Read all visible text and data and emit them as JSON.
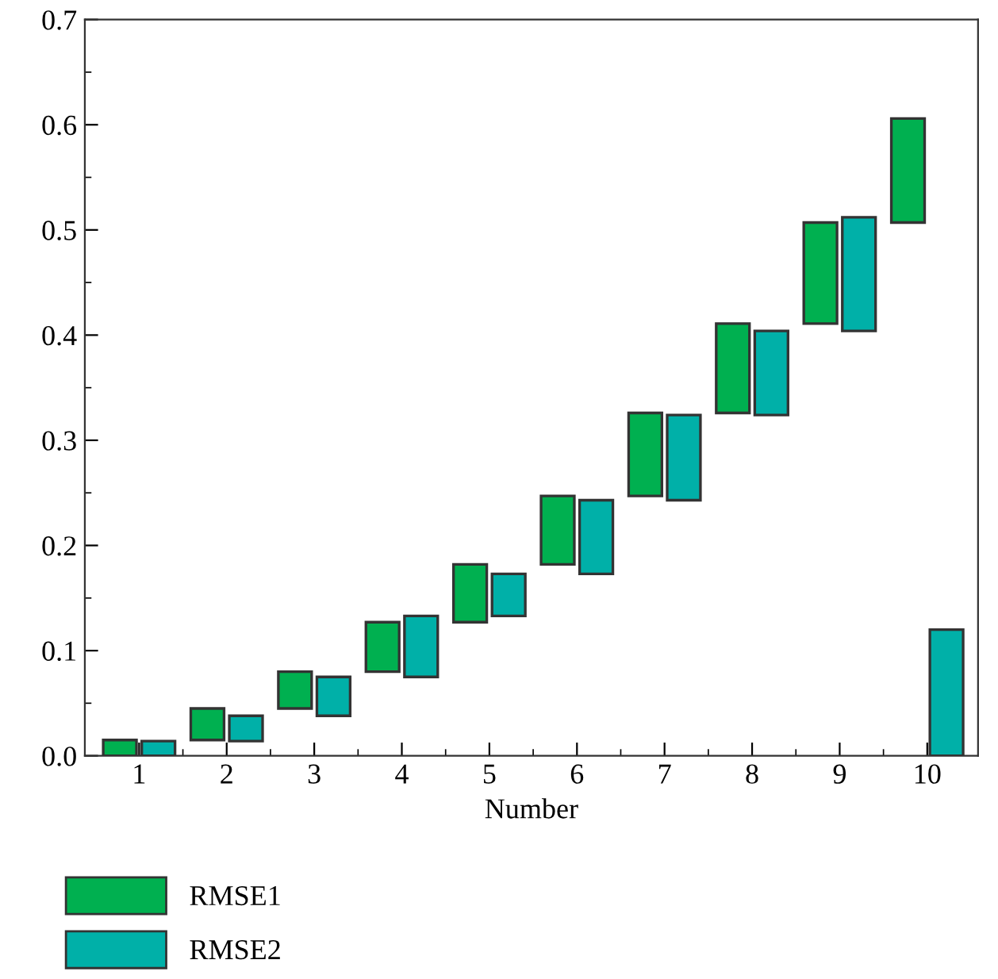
{
  "chart_data": {
    "type": "bar",
    "xlabel": "Number",
    "categories": [
      "1",
      "2",
      "3",
      "4",
      "5",
      "6",
      "7",
      "8",
      "9",
      "10"
    ],
    "series": [
      {
        "name": "RMSE1",
        "color": "#00b050",
        "values": [
          0.015,
          0.03,
          0.035,
          0.047,
          0.055,
          0.065,
          0.079,
          0.085,
          0.096,
          0.099
        ],
        "base": [
          0,
          0.015,
          0.045,
          0.08,
          0.127,
          0.182,
          0.247,
          0.326,
          0.411,
          0.507
        ]
      },
      {
        "name": "RMSE2",
        "color": "#00b0a8",
        "values": [
          0.014,
          0.024,
          0.037,
          0.058,
          0.04,
          0.07,
          0.081,
          0.08,
          0.108,
          0.12
        ],
        "base": [
          0,
          0.014,
          0.038,
          0.075,
          0.133,
          0.173,
          0.243,
          0.324,
          0.404,
          0
        ]
      }
    ],
    "ylim": [
      0,
      0.7
    ],
    "yticks": [
      {
        "value": 0,
        "label": "0.0"
      },
      0.1,
      0.2,
      0.3,
      0.4,
      0.5,
      0.6,
      0.7
    ],
    "grid": false,
    "legend": "bottom left"
  }
}
